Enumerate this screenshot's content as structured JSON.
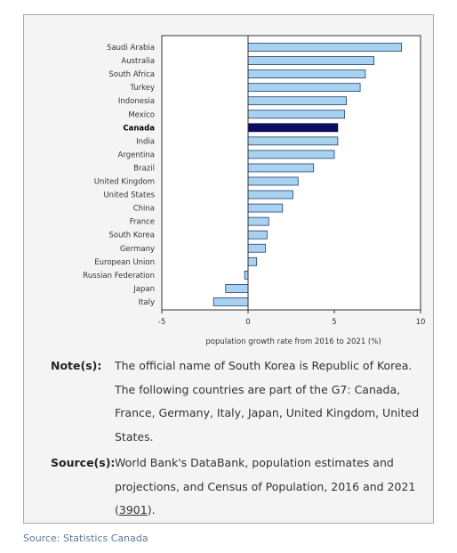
{
  "chart_data": {
    "type": "bar",
    "orientation": "horizontal",
    "categories": [
      "Saudi Arabia",
      "Australia",
      "South Africa",
      "Turkey",
      "Indonesia",
      "Mexico",
      "Canada",
      "India",
      "Argentina",
      "Brazil",
      "United Kingdom",
      "United States",
      "China",
      "France",
      "South Korea",
      "Germany",
      "European Union",
      "Russian Federation",
      "Japan",
      "Italy"
    ],
    "values": [
      8.9,
      7.3,
      6.8,
      6.5,
      5.7,
      5.6,
      5.2,
      5.2,
      5.0,
      3.8,
      2.9,
      2.6,
      2.0,
      1.2,
      1.1,
      1.0,
      0.5,
      -0.2,
      -1.3,
      -2.0
    ],
    "highlight": "Canada",
    "xlabel": "population growth rate from 2016 to 2021 (%)",
    "ylabel": "",
    "xlim": [
      -5,
      10
    ],
    "xticks": [
      "-5",
      "0",
      "5",
      "10"
    ],
    "grid": false,
    "colors": {
      "bar": "#a9d1f0",
      "bar_stroke": "#1f3f73",
      "highlight": "#0c0c5f"
    }
  },
  "notes": {
    "heading": "Note(s):",
    "lines": [
      "The official name of South Korea is Republic of Korea.",
      "The following countries are part of the G7: Canada,",
      "France, Germany, Italy, Japan, United Kingdom, United",
      "States."
    ]
  },
  "sources": {
    "heading": "Source(s):",
    "lines": [
      "World Bank's DataBank, population estimates and",
      "projections, and Census of Population, 2016 and 2021"
    ],
    "open_paren": "(",
    "link_text": "3901",
    "close_text": ")."
  },
  "footer": {
    "text": "Source: Statistics Canada"
  }
}
